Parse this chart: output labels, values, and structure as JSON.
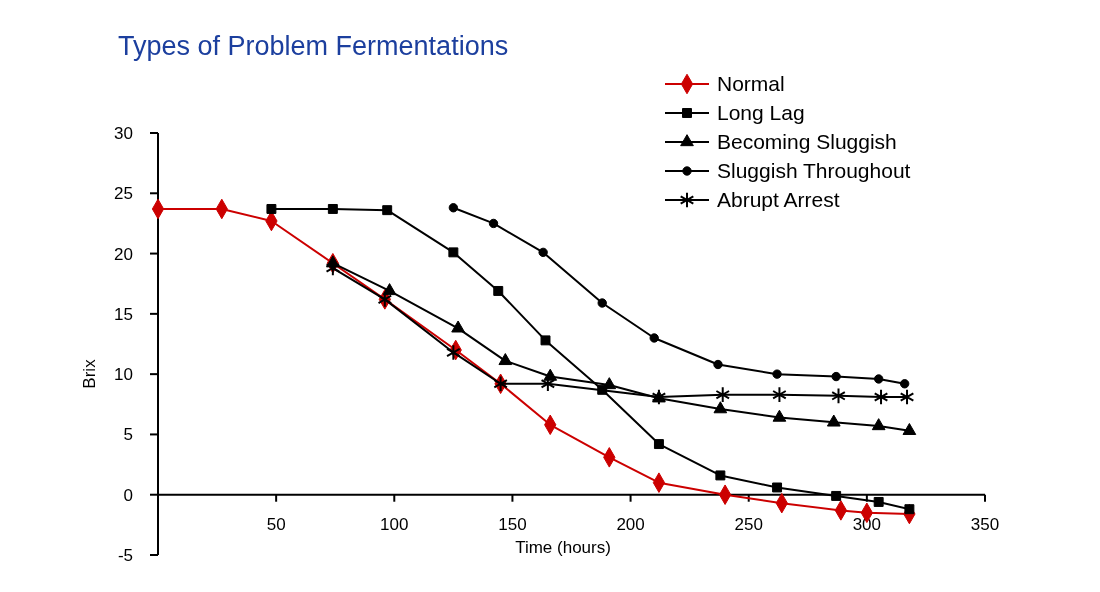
{
  "chart_data": {
    "type": "line",
    "title": "Types of Problem Fermentations",
    "xlabel": "Time (hours)",
    "ylabel": "Brix",
    "xlim": [
      0,
      350
    ],
    "xticks": [
      50,
      100,
      150,
      200,
      250,
      300,
      350
    ],
    "ylim": [
      -5,
      30
    ],
    "yticks": [
      -5,
      0,
      5,
      10,
      15,
      20,
      25,
      30
    ],
    "grid": false,
    "legend": "top right",
    "series": [
      {
        "name": "Normal",
        "color": "#cc0000",
        "marker": "diamond",
        "x": [
          0,
          27,
          48,
          74,
          96,
          126,
          145,
          166,
          191,
          212,
          240,
          264,
          289,
          300,
          318
        ],
        "values": [
          23.7,
          23.7,
          22.7,
          19.2,
          16.2,
          12,
          9.2,
          5.8,
          3.1,
          1.0,
          0,
          -0.7,
          -1.3,
          -1.5,
          -1.6
        ]
      },
      {
        "name": "Long Lag",
        "color": "#000000",
        "marker": "square",
        "x": [
          48,
          74,
          97,
          125,
          144,
          164,
          188,
          212,
          238,
          262,
          287,
          305,
          318
        ],
        "values": [
          23.7,
          23.7,
          23.6,
          20.1,
          16.9,
          12.8,
          8.7,
          4.2,
          1.6,
          0.6,
          -0.1,
          -0.6,
          -1.2
        ]
      },
      {
        "name": "Becoming Sluggish",
        "color": "#000000",
        "marker": "triangle",
        "x": [
          74,
          98,
          127,
          147,
          166,
          191,
          212,
          238,
          263,
          286,
          305,
          318
        ],
        "values": [
          19.2,
          16.9,
          13.8,
          11.1,
          9.8,
          9.1,
          8.0,
          7.1,
          6.4,
          6.0,
          5.7,
          5.3
        ]
      },
      {
        "name": "Sluggish Throughout",
        "color": "#000000",
        "marker": "circle",
        "x": [
          125,
          142,
          163,
          188,
          210,
          237,
          262,
          287,
          305,
          316
        ],
        "values": [
          23.8,
          22.5,
          20.1,
          15.9,
          13.0,
          10.8,
          10.0,
          9.8,
          9.6,
          9.2
        ]
      },
      {
        "name": "Abrupt Arrest",
        "color": "#000000",
        "marker": "cross",
        "x": [
          74,
          96,
          125,
          145,
          165,
          212,
          239,
          263,
          288,
          306,
          317
        ],
        "values": [
          18.8,
          16.2,
          11.8,
          9.2,
          9.2,
          8.1,
          8.3,
          8.3,
          8.2,
          8.1,
          8.1
        ]
      }
    ]
  }
}
